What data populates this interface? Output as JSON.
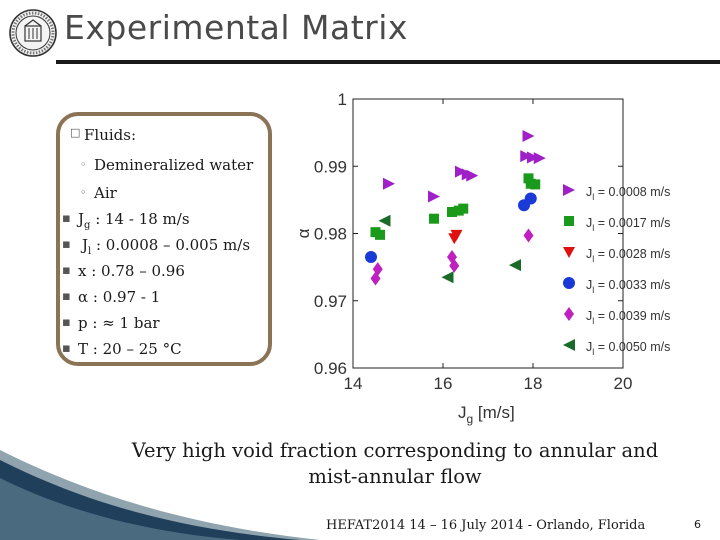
{
  "slide": {
    "title": "Experimental Matrix",
    "caption_line1": "Very high void fraction corresponding to annular and",
    "caption_line2": "mist-annular flow",
    "footer": "HEFAT2014 14 – 16 July 2014 - Orlando, Florida",
    "page_number": "6",
    "logo_icon": "university-seal-icon"
  },
  "bullets": {
    "fluids": "Fluids:",
    "water": "Demineralized water",
    "air": "Air",
    "jg_sym": "J",
    "jg_sub": "g",
    "jg_val": " : 14 - 18 m/s",
    "jl_sym": "J",
    "jl_sub": "l",
    "jl_val": " : 0.0008 – 0.005 m/s",
    "x": "x : 0.78 – 0.96",
    "alpha": "α : 0.97 - 1",
    "p": "p : ≈ 1 bar",
    "T": "T : 20 – 25 °C"
  },
  "chart_data": {
    "type": "scatter",
    "xlabel_main": "J",
    "xlabel_sub": "g",
    "xlabel_unit": " [m/s]",
    "ylabel": "α",
    "xlim": [
      14,
      20
    ],
    "ylim": [
      0.96,
      1
    ],
    "xticks": [
      "14",
      "16",
      "18",
      "20"
    ],
    "yticks": [
      "0.96",
      "0.97",
      "0.98",
      "0.99",
      "1"
    ],
    "legend_position": "right",
    "series": [
      {
        "name": "J",
        "sub": "l",
        "label": " = 0.0008 m/s",
        "color": "#a020c8",
        "marker": "triangle-right",
        "points": [
          [
            14.8,
            0.9874
          ],
          [
            15.8,
            0.9855
          ],
          [
            16.4,
            0.9892
          ],
          [
            16.55,
            0.9888
          ],
          [
            16.65,
            0.9886
          ],
          [
            17.9,
            0.9945
          ],
          [
            17.85,
            0.9915
          ],
          [
            18.0,
            0.9913
          ],
          [
            18.15,
            0.9912
          ]
        ]
      },
      {
        "name": "J",
        "sub": "l",
        "label": " = 0.0017 m/s",
        "color": "#1a9a1a",
        "marker": "square",
        "points": [
          [
            14.5,
            0.9802
          ],
          [
            14.6,
            0.9798
          ],
          [
            15.8,
            0.9822
          ],
          [
            16.2,
            0.9832
          ],
          [
            16.35,
            0.9834
          ],
          [
            16.45,
            0.9837
          ],
          [
            17.9,
            0.9882
          ],
          [
            17.95,
            0.9874
          ],
          [
            18.05,
            0.9873
          ]
        ]
      },
      {
        "name": "J",
        "sub": "l",
        "label": " = 0.0028 m/s",
        "color": "#e01010",
        "marker": "triangle-down",
        "points": [
          [
            16.3,
            0.9798
          ],
          [
            16.25,
            0.9793
          ]
        ]
      },
      {
        "name": "J",
        "sub": "l",
        "label": " = 0.0033 m/s",
        "color": "#1a3ad8",
        "marker": "circle",
        "points": [
          [
            14.4,
            0.9765
          ],
          [
            17.8,
            0.9842
          ],
          [
            17.95,
            0.9852
          ]
        ]
      },
      {
        "name": "J",
        "sub": "l",
        "label": " = 0.0039 m/s",
        "color": "#c020c0",
        "marker": "diamond",
        "points": [
          [
            14.5,
            0.9733
          ],
          [
            14.55,
            0.9747
          ],
          [
            16.2,
            0.9765
          ],
          [
            16.25,
            0.9752
          ],
          [
            17.9,
            0.9797
          ]
        ]
      },
      {
        "name": "J",
        "sub": "l",
        "label": " = 0.0050 m/s",
        "color": "#1a6a2a",
        "marker": "triangle-left",
        "points": [
          [
            14.7,
            0.9819
          ],
          [
            16.1,
            0.9735
          ],
          [
            17.6,
            0.9753
          ]
        ]
      }
    ]
  }
}
